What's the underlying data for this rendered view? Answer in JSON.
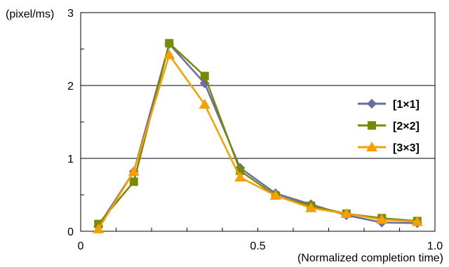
{
  "chart_data": {
    "type": "line",
    "xlabel": "(Normalized completion time)",
    "ylabel": "(pixel/ms)",
    "xlim": [
      0,
      1.0
    ],
    "ylim": [
      0,
      3
    ],
    "x_ticks": [
      0,
      0.5,
      1.0
    ],
    "x_tick_labels": [
      "0",
      "0.5",
      "1.0"
    ],
    "y_ticks": [
      0,
      1,
      2,
      3
    ],
    "y_tick_labels": [
      "0",
      "1",
      "2",
      "3"
    ],
    "grid": "horizontal",
    "legend_position": "right",
    "x": [
      0.05,
      0.15,
      0.25,
      0.35,
      0.45,
      0.55,
      0.65,
      0.75,
      0.85,
      0.95
    ],
    "series": [
      {
        "name": "[1×1]",
        "marker": "diamond",
        "color": "#6B6BA3",
        "values": [
          0.07,
          0.82,
          2.57,
          2.03,
          0.87,
          0.52,
          0.37,
          0.22,
          0.12,
          0.11
        ]
      },
      {
        "name": "[2×2]",
        "marker": "square",
        "color": "#7A8A00",
        "values": [
          0.1,
          0.68,
          2.58,
          2.13,
          0.83,
          0.49,
          0.35,
          0.24,
          0.18,
          0.14
        ]
      },
      {
        "name": "[3×3]",
        "marker": "triangle",
        "color": "#F5A000",
        "values": [
          0.03,
          0.82,
          2.42,
          1.74,
          0.74,
          0.49,
          0.32,
          0.24,
          0.16,
          0.13
        ]
      }
    ]
  }
}
